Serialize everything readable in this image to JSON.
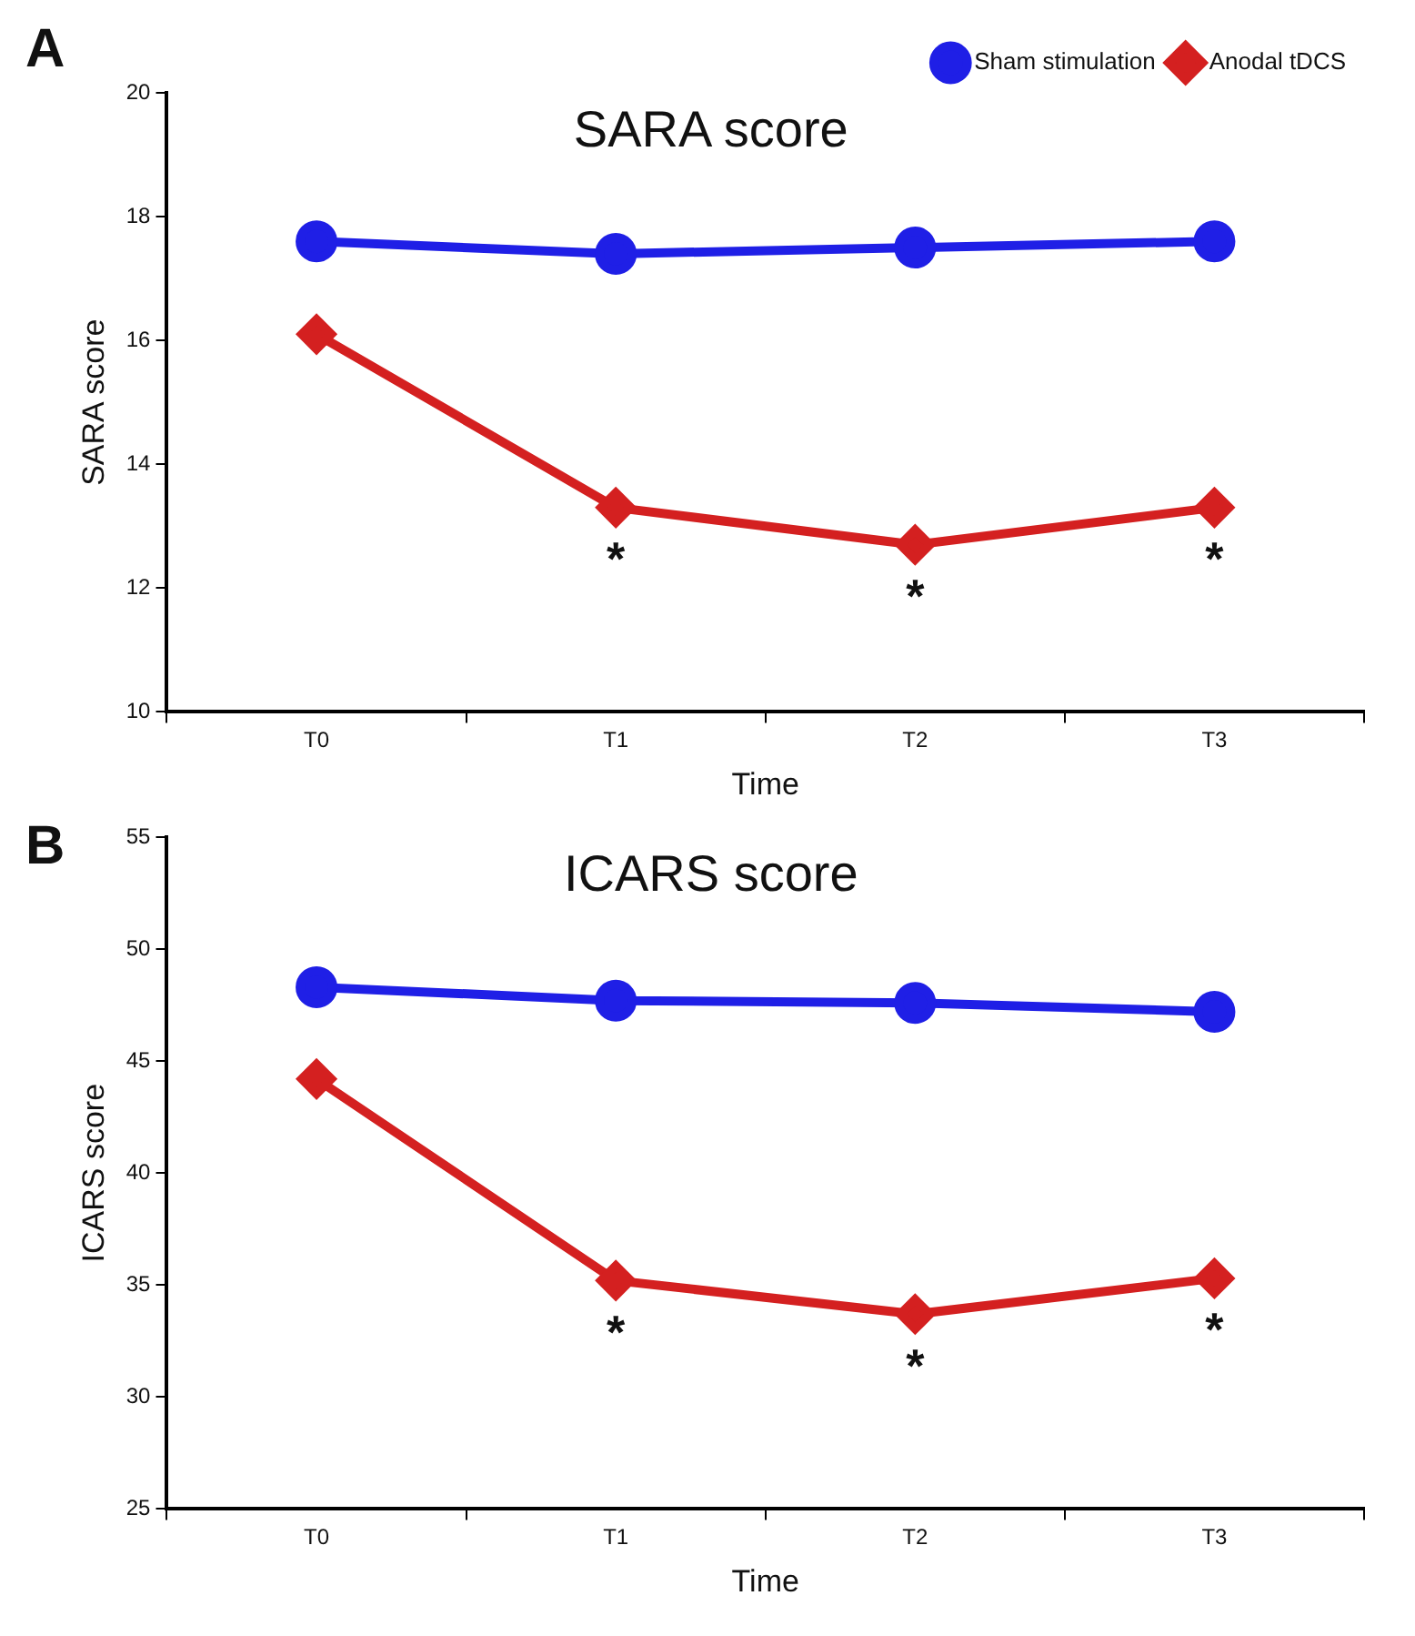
{
  "chart_data": [
    {
      "type": "line",
      "title": "SARA score",
      "xlabel": "Time",
      "ylabel": "SARA score",
      "categories": [
        "T0",
        "T1",
        "T2",
        "T3"
      ],
      "series": [
        {
          "name": "Sham stimulation",
          "color": "#1f1fe6",
          "marker": "circle",
          "values": [
            17.6,
            17.4,
            17.5,
            17.6
          ]
        },
        {
          "name": "Anodal tDCS",
          "color": "#d42020",
          "marker": "diamond",
          "values": [
            16.1,
            13.3,
            12.7,
            13.3
          ]
        }
      ],
      "ylim": [
        10,
        20
      ],
      "yticks": [
        10,
        12,
        14,
        16,
        18,
        20
      ],
      "grid": false,
      "legend": "top right",
      "line_style": "solid",
      "annotations": [
        "A",
        {
          "text": "*",
          "x": "T1",
          "y": 13.3
        },
        {
          "text": "*",
          "x": "T2",
          "y": 12.7
        },
        {
          "text": "*",
          "x": "T3",
          "y": 13.3
        }
      ]
    },
    {
      "type": "line",
      "title": "ICARS score",
      "xlabel": "Time",
      "ylabel": "ICARS score",
      "categories": [
        "T0",
        "T1",
        "T2",
        "T3"
      ],
      "series": [
        {
          "color": "#1f1fe6",
          "marker": "circle",
          "values": [
            48.3,
            47.7,
            47.6,
            47.2
          ]
        },
        {
          "color": "#d42020",
          "marker": "diamond",
          "values": [
            44.2,
            35.2,
            33.7,
            35.3
          ]
        }
      ],
      "ylim": [
        25,
        55
      ],
      "yticks": [
        25,
        30,
        35,
        40,
        45,
        50,
        55
      ],
      "grid": false,
      "legend": false,
      "line_style": "solid",
      "annotations": [
        "B",
        {
          "text": "*",
          "x": "T1",
          "y": 35.2
        },
        {
          "text": "*",
          "x": "T2",
          "y": 33.7
        },
        {
          "text": "*",
          "x": "T3",
          "y": 35.3
        }
      ]
    }
  ]
}
